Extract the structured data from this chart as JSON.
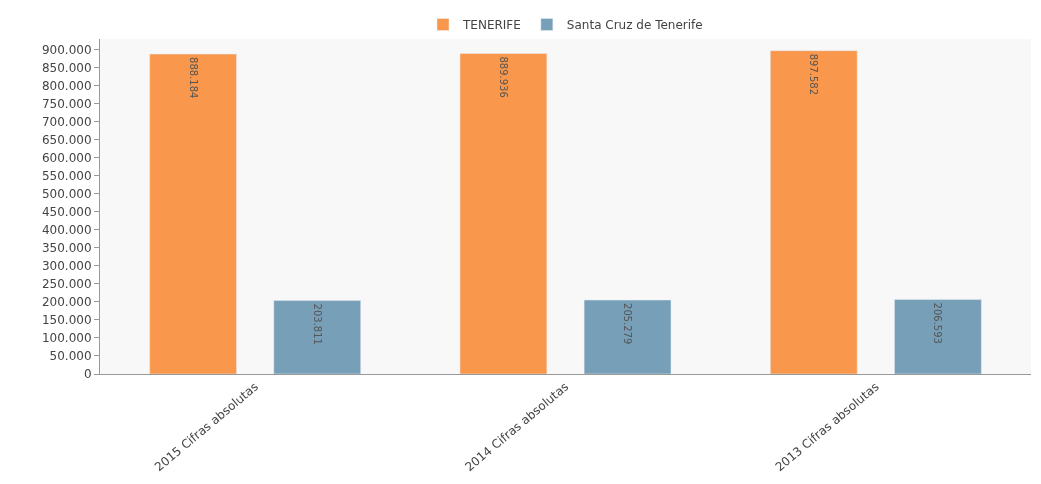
{
  "chart_data": {
    "type": "bar",
    "categories": [
      "2015 Cifras absolutas",
      "2014 Cifras absolutas",
      "2013 Cifras absolutas"
    ],
    "series": [
      {
        "name": "TENERIFE",
        "color": "#f9984c",
        "values": [
          888184,
          889936,
          897582
        ],
        "value_labels": [
          "888.184",
          "889.936",
          "897.582"
        ]
      },
      {
        "name": "Santa Cruz de Tenerife",
        "color": "#779fb7",
        "values": [
          203811,
          205279,
          206593
        ],
        "value_labels": [
          "203.811",
          "205.279",
          "206.593"
        ]
      }
    ],
    "ylim": [
      0,
      930000
    ],
    "yticks": [
      {
        "value": 0,
        "label": "0"
      },
      {
        "value": 50000,
        "label": "50.000"
      },
      {
        "value": 100000,
        "label": "100.000"
      },
      {
        "value": 150000,
        "label": "150.000"
      },
      {
        "value": 200000,
        "label": "200.000"
      },
      {
        "value": 250000,
        "label": "250.000"
      },
      {
        "value": 300000,
        "label": "300.000"
      },
      {
        "value": 350000,
        "label": "350.000"
      },
      {
        "value": 400000,
        "label": "400.000"
      },
      {
        "value": 450000,
        "label": "450.000"
      },
      {
        "value": 500000,
        "label": "500.000"
      },
      {
        "value": 550000,
        "label": "550.000"
      },
      {
        "value": 600000,
        "label": "600.000"
      },
      {
        "value": 650000,
        "label": "650.000"
      },
      {
        "value": 700000,
        "label": "700.000"
      },
      {
        "value": 750000,
        "label": "750.000"
      },
      {
        "value": 800000,
        "label": "800.000"
      },
      {
        "value": 850000,
        "label": "850.000"
      },
      {
        "value": 900000,
        "label": "900.000"
      }
    ],
    "grid": false,
    "legend": "top"
  }
}
